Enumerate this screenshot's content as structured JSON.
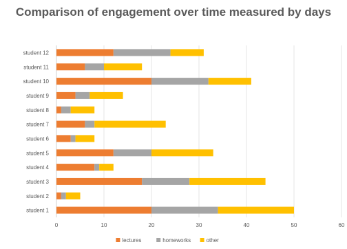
{
  "chart_data": {
    "type": "bar",
    "orientation": "horizontal",
    "stacked": true,
    "title": "Comparison of engagement over time measured by days",
    "categories": [
      "student 1",
      "student 2",
      "student 3",
      "student 4",
      "student 5",
      "student 6",
      "student 7",
      "student 8",
      "student 9",
      "student 10",
      "student 11",
      "student 12"
    ],
    "series": [
      {
        "name": "lectures",
        "color": "#ED7D31",
        "values": [
          20,
          1,
          18,
          8,
          12,
          3,
          6,
          1,
          4,
          20,
          6,
          12
        ]
      },
      {
        "name": "homeworks",
        "color": "#A5A5A5",
        "values": [
          14,
          1,
          10,
          1,
          8,
          1,
          2,
          2,
          3,
          12,
          4,
          12
        ]
      },
      {
        "name": "other",
        "color": "#FFC000",
        "values": [
          16,
          3,
          16,
          3,
          13,
          4,
          15,
          5,
          7,
          9,
          8,
          7
        ]
      }
    ],
    "xlim": [
      0,
      60
    ],
    "xticks": [
      "0",
      "10",
      "20",
      "30",
      "40",
      "50",
      "60"
    ],
    "xlabel": "",
    "ylabel": "",
    "grid": "vertical",
    "legend_position": "bottom"
  }
}
